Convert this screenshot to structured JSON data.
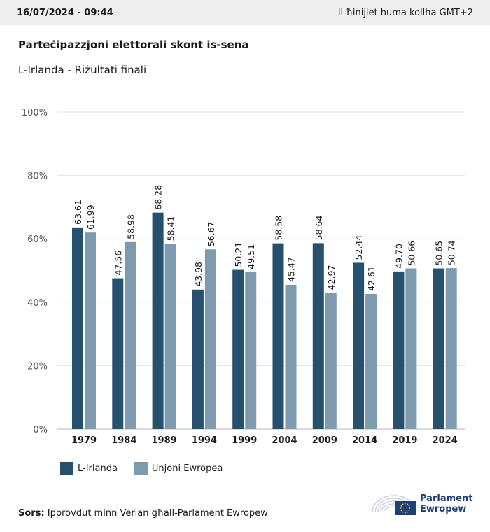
{
  "header": {
    "timestamp": "16/07/2024 - 09:44",
    "timezone_note": "Il-ħinijiet huma kollha GMT+2"
  },
  "chart_data": {
    "type": "bar",
    "title": "Parteċipazzjoni elettorali skont is-sena",
    "subtitle": "L-Irlanda - Riżultati finali",
    "categories": [
      "1979",
      "1984",
      "1989",
      "1994",
      "1999",
      "2004",
      "2009",
      "2014",
      "2019",
      "2024"
    ],
    "series": [
      {
        "name": "L-Irlanda",
        "color": "#25506e",
        "values": [
          63.61,
          47.56,
          68.28,
          43.98,
          50.21,
          58.58,
          58.64,
          52.44,
          49.7,
          50.65
        ],
        "labels": [
          "63.61",
          "47.56",
          "68.28",
          "43.98",
          "50.21",
          "58.58",
          "58.64",
          "52.44",
          "49.70",
          "50.65"
        ]
      },
      {
        "name": "Unjoni Ewropea",
        "color": "#7e9aae",
        "values": [
          61.99,
          58.98,
          58.41,
          56.67,
          49.51,
          45.47,
          42.97,
          42.61,
          50.66,
          50.74
        ],
        "labels": [
          "61.99",
          "58.98",
          "58.41",
          "56.67",
          "49.51",
          "45.47",
          "42.97",
          "42.61",
          "50.66",
          "50.74"
        ]
      }
    ],
    "ylim": [
      0,
      100
    ],
    "yticks": [
      0,
      20,
      40,
      60,
      80,
      100
    ],
    "ytick_labels": [
      "0%",
      "20%",
      "40%",
      "60%",
      "80%",
      "100%"
    ],
    "grid": true,
    "legend_position": "bottom-left"
  },
  "footer": {
    "source_label": "Sors:",
    "source_text": " Ipprovdut minn Verian għall-Parlament Ewropew",
    "logo_line1": "Parlament",
    "logo_line2": "Ewropew",
    "logo_color": "#1f3f75"
  }
}
